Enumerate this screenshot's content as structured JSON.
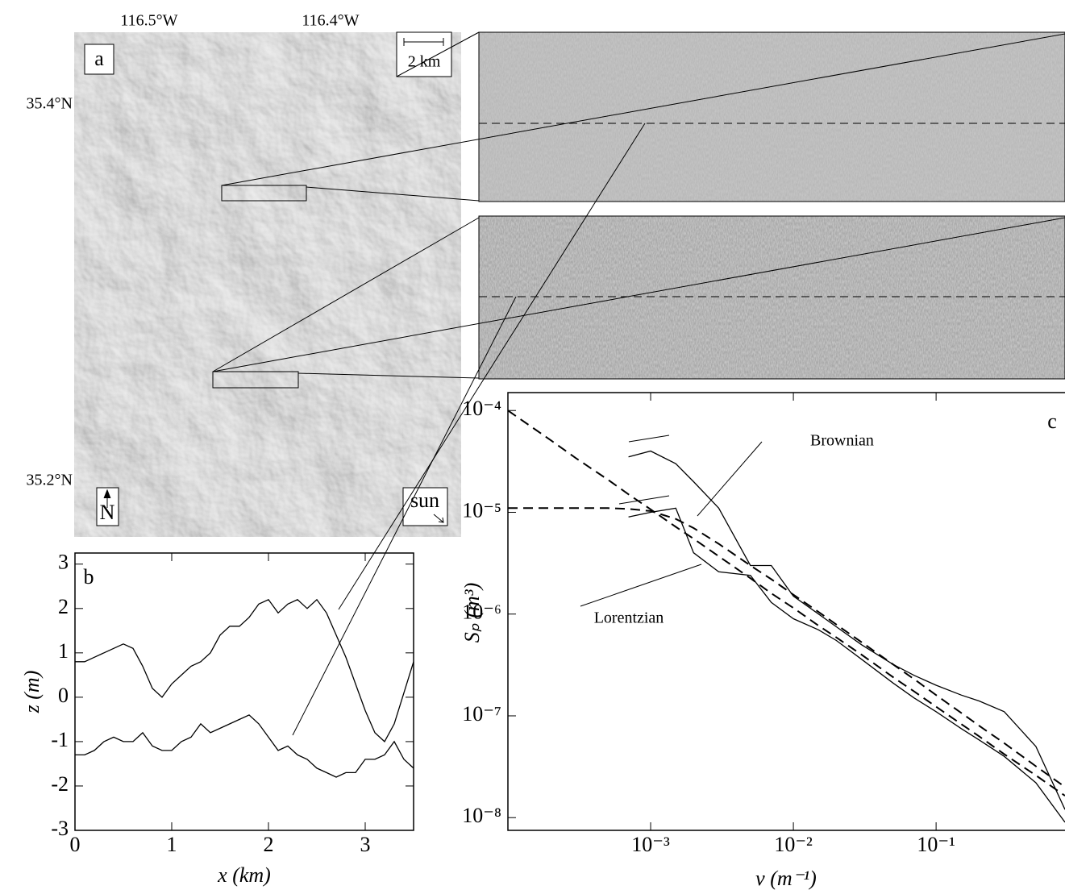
{
  "panel_a": {
    "label": "a",
    "lon_labels": [
      "116.5°W",
      "116.4°W"
    ],
    "lat_labels": [
      "35.4°N",
      "35.2°N"
    ],
    "scale_label": "2 km",
    "north_label": "N",
    "sun_label": "sun"
  },
  "chart_data": [
    {
      "type": "line",
      "label": "b",
      "xlabel": "x (km)",
      "ylabel": "z (m)",
      "x": [
        0,
        0.1,
        0.2,
        0.3,
        0.4,
        0.5,
        0.6,
        0.7,
        0.8,
        0.9,
        1.0,
        1.1,
        1.2,
        1.3,
        1.4,
        1.5,
        1.6,
        1.7,
        1.8,
        1.9,
        2.0,
        2.1,
        2.2,
        2.3,
        2.4,
        2.5,
        2.6,
        2.7,
        2.8,
        2.9,
        3.0,
        3.1,
        3.2,
        3.3,
        3.4,
        3.5
      ],
      "series": [
        {
          "color": "#000000",
          "values": [
            0.8,
            0.8,
            0.9,
            1.0,
            1.1,
            1.2,
            1.1,
            0.7,
            0.2,
            0.0,
            0.3,
            0.5,
            0.7,
            0.8,
            1.0,
            1.4,
            1.6,
            1.6,
            1.8,
            2.1,
            2.2,
            1.9,
            2.1,
            2.2,
            2.0,
            2.2,
            1.9,
            1.4,
            0.9,
            0.3,
            -0.3,
            -0.8,
            -1.0,
            -0.6,
            0.1,
            0.8
          ]
        },
        {
          "color": "#000000",
          "values": [
            -1.3,
            -1.3,
            -1.2,
            -1.0,
            -0.9,
            -1.0,
            -1.0,
            -0.8,
            -1.1,
            -1.2,
            -1.2,
            -1.0,
            -0.9,
            -0.6,
            -0.8,
            -0.7,
            -0.6,
            -0.5,
            -0.4,
            -0.6,
            -0.9,
            -1.2,
            -1.1,
            -1.3,
            -1.4,
            -1.6,
            -1.7,
            -1.8,
            -1.7,
            -1.7,
            -1.4,
            -1.4,
            -1.3,
            -1.0,
            -1.4,
            -1.6
          ]
        }
      ],
      "xlim": [
        0,
        3.5
      ],
      "ylim": [
        -3,
        3.25
      ],
      "xticks": [
        0,
        1,
        2,
        3
      ],
      "yticks": [
        -3,
        -2,
        -1,
        0,
        1,
        2,
        3
      ]
    },
    {
      "type": "line",
      "label": "c",
      "xlabel": "ν (m⁻¹)",
      "ylabel": "Sₚ (m³)",
      "log_scale": true,
      "annotations": [
        "Brownian",
        "Lorentzian"
      ],
      "x": [
        0.0001,
        0.0002,
        0.0003,
        0.0005,
        0.0007,
        0.001,
        0.0015,
        0.002,
        0.003,
        0.005,
        0.007,
        0.01,
        0.015,
        0.02,
        0.03,
        0.05,
        0.07,
        0.1,
        0.15,
        0.2,
        0.3,
        0.5,
        0.8
      ],
      "series": [
        {
          "color": "#000000",
          "dashed": true,
          "values": [
            0.0001,
            5.1e-05,
            3.4e-05,
            2.1e-05,
            1.5e-05,
            1.07e-05,
            7.2e-06,
            5.5e-06,
            3.7e-06,
            2.25e-06,
            1.6e-06,
            1.15e-06,
            7.7e-07,
            5.9e-07,
            4e-07,
            2.4e-07,
            1.74e-07,
            1.23e-07,
            8.3e-08,
            6.3e-08,
            4.2e-08,
            2.6e-08,
            1.64e-08
          ]
        },
        {
          "color": "#000000",
          "dashed": true,
          "values": [
            1.1e-05,
            1.1e-05,
            1.1e-05,
            1.1e-05,
            1.08e-05,
            1.03e-05,
            8.6e-06,
            7e-06,
            4.9e-06,
            3e-06,
            2.2e-06,
            1.55e-06,
            1.05e-06,
            7.9e-07,
            5.3e-07,
            3.2e-07,
            2.3e-07,
            1.6e-07,
            1.07e-07,
            8e-08,
            5.4e-08,
            3.2e-08,
            2e-08
          ]
        },
        {
          "color": "#000000",
          "values": [
            null,
            null,
            null,
            null,
            3.5e-05,
            4e-05,
            3e-05,
            2e-05,
            1.1e-05,
            3e-06,
            3e-06,
            1.5e-06,
            1e-06,
            7.5e-07,
            5e-07,
            3.2e-07,
            2.5e-07,
            2e-07,
            1.6e-07,
            1.4e-07,
            1.1e-07,
            5e-08,
            1.2e-08
          ]
        },
        {
          "color": "#000000",
          "values": [
            null,
            null,
            null,
            null,
            9e-06,
            1e-05,
            1.1e-05,
            4e-06,
            2.6e-06,
            2.4e-06,
            1.3e-06,
            9e-07,
            7e-07,
            5.5e-07,
            3.6e-07,
            2.1e-07,
            1.5e-07,
            1.1e-07,
            7.5e-08,
            5.8e-08,
            4e-08,
            2.2e-08,
            9e-09
          ]
        }
      ],
      "xlim": [
        0.0001,
        0.8
      ],
      "ylim": [
        7.5e-09,
        0.00015
      ],
      "xticks": [
        {
          "value": 0.001,
          "label": "10⁻³"
        },
        {
          "value": 0.01,
          "label": "10⁻²"
        },
        {
          "value": 0.1,
          "label": "10⁻¹"
        }
      ],
      "yticks": [
        {
          "value": 1e-08,
          "label": "10⁻⁸"
        },
        {
          "value": 1e-07,
          "label": "10⁻⁷"
        },
        {
          "value": 1e-06,
          "label": "10⁻⁶"
        },
        {
          "value": 1e-05,
          "label": "10⁻⁵"
        },
        {
          "value": 0.0001,
          "label": "10⁻⁴"
        }
      ]
    }
  ]
}
